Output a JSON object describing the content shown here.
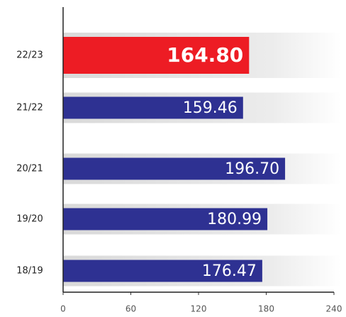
{
  "chart_data": {
    "type": "bar",
    "orientation": "horizontal",
    "categories": [
      "22/23",
      "21/22",
      "20/21",
      "19/20",
      "18/19"
    ],
    "values": [
      164.8,
      159.46,
      196.7,
      180.99,
      176.47
    ],
    "value_labels": [
      "164.80",
      "159.46",
      "196.70",
      "180.99",
      "176.47"
    ],
    "colors": [
      "#ed1c24",
      "#2e3192",
      "#2e3192",
      "#2e3192",
      "#2e3192"
    ],
    "xlim": [
      0,
      240
    ],
    "xticks": [
      0,
      60,
      120,
      180,
      240
    ]
  }
}
